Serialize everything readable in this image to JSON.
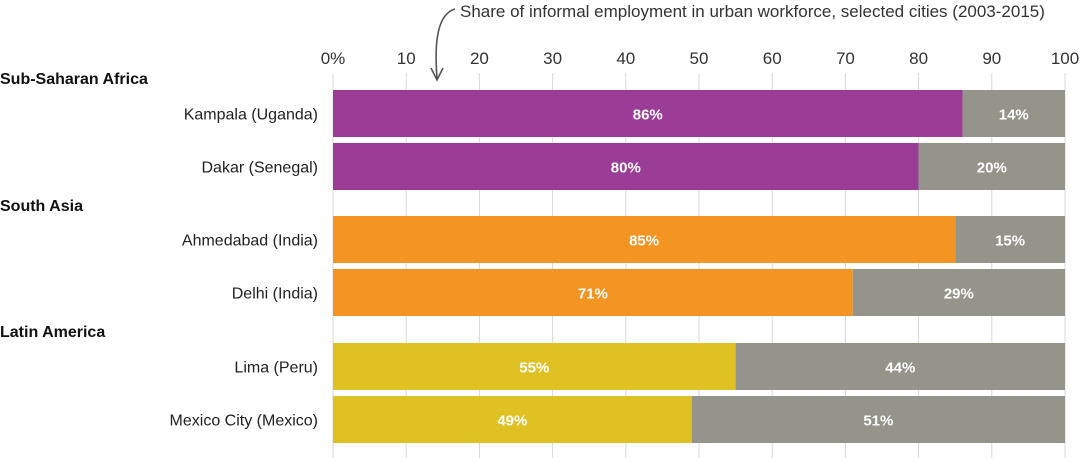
{
  "chart_data": {
    "type": "bar",
    "orientation": "horizontal",
    "stacked": true,
    "title": "Share of informal employment in urban workforce, selected cities (2003-2015)",
    "xlim": [
      0,
      100
    ],
    "x_ticks": [
      "0%",
      "10",
      "20",
      "30",
      "40",
      "50",
      "60",
      "70",
      "80",
      "90",
      "100"
    ],
    "grid": true,
    "groups": [
      {
        "name": "Sub-Saharan Africa",
        "color": "#9B3D96",
        "rows": [
          {
            "category": "Kampala (Uganda)",
            "values": [
              86,
              14
            ],
            "labels": [
              "86%",
              "14%"
            ]
          },
          {
            "category": "Dakar (Senegal)",
            "values": [
              80,
              20
            ],
            "labels": [
              "80%",
              "20%"
            ]
          }
        ]
      },
      {
        "name": "South Asia",
        "color": "#F39423",
        "rows": [
          {
            "category": "Ahmedabad (India)",
            "values": [
              85,
              15
            ],
            "labels": [
              "85%",
              "15%"
            ]
          },
          {
            "category": "Delhi (India)",
            "values": [
              71,
              29
            ],
            "labels": [
              "71%",
              "29%"
            ]
          }
        ]
      },
      {
        "name": "Latin America",
        "color": "#E0C124",
        "rows": [
          {
            "category": "Lima (Peru)",
            "values": [
              55,
              44
            ],
            "labels": [
              "55%",
              "44%"
            ]
          },
          {
            "category": "Mexico City (Mexico)",
            "values": [
              49,
              51
            ],
            "labels": [
              "49%",
              "51%"
            ]
          }
        ]
      }
    ],
    "remainder_color": "#94948A",
    "annotation_arrow_color": "#555555"
  }
}
